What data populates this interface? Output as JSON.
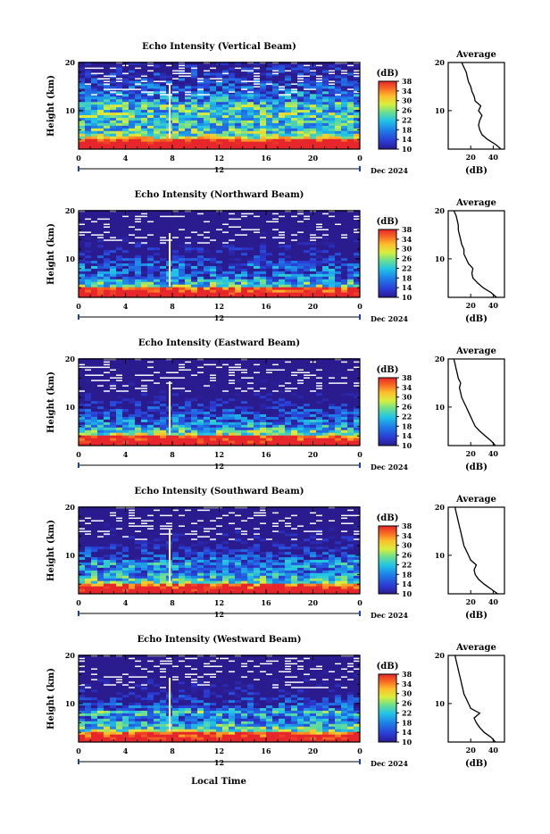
{
  "panels": [
    {
      "title": "Echo Intensity (Vertical Beam)",
      "avg_title": "Average",
      "avg_xticks": [
        "20",
        "40"
      ]
    },
    {
      "title": "Echo Intensity (Northward Beam)",
      "avg_title": "Average",
      "avg_xticks": [
        "20",
        "40"
      ]
    },
    {
      "title": "Echo Intensity (Eastward Beam)",
      "avg_title": "Average",
      "avg_xticks": [
        "20",
        "40"
      ]
    },
    {
      "title": "Echo Intensity (Southward Beam)",
      "avg_title": "Average",
      "avg_xticks": [
        "20",
        "40"
      ]
    },
    {
      "title": "Echo Intensity (Westward Beam)",
      "avg_title": "Average",
      "avg_xticks": [
        "20",
        "40"
      ]
    }
  ],
  "common": {
    "ylabel": "Height (km)",
    "yticks": [
      "20",
      "10"
    ],
    "xticks": [
      "0",
      "4",
      "8",
      "12",
      "16",
      "20",
      "0"
    ],
    "date_label": "Dec 2024",
    "date_tick": "12",
    "colorbar_label": "(dB)",
    "colorbar_ticks": [
      "38",
      "34",
      "30",
      "26",
      "22",
      "18",
      "14",
      "10"
    ],
    "avg_ylabel": "(dB)",
    "avg_yticks": [
      "20",
      "10"
    ],
    "xlabel": "Local Time"
  },
  "chart_data": [
    {
      "type": "heatmap",
      "title": "Echo Intensity (Vertical Beam)",
      "xlabel": "Local Time",
      "ylabel": "Height (km)",
      "xlim": [
        0,
        24
      ],
      "ylim": [
        2,
        20
      ],
      "colorbar": {
        "label": "(dB)",
        "range": [
          10,
          38
        ],
        "ticks": [
          10,
          14,
          18,
          22,
          26,
          30,
          34,
          38
        ]
      },
      "average_profile": {
        "height_km": [
          2,
          3,
          4,
          5,
          6,
          7,
          8,
          9,
          10,
          11,
          12,
          13,
          14,
          15,
          16,
          17,
          18,
          19,
          20
        ],
        "db": [
          47,
          42,
          35,
          30,
          28,
          27,
          28,
          30,
          27,
          29,
          24,
          23,
          21,
          20,
          18,
          17,
          16,
          14,
          12
        ]
      }
    },
    {
      "type": "heatmap",
      "title": "Echo Intensity (Northward Beam)",
      "xlabel": "Local Time",
      "ylabel": "Height (km)",
      "xlim": [
        0,
        24
      ],
      "ylim": [
        2,
        20
      ],
      "colorbar": {
        "label": "(dB)",
        "range": [
          10,
          38
        ],
        "ticks": [
          10,
          14,
          18,
          22,
          26,
          30,
          34,
          38
        ]
      },
      "average_profile": {
        "height_km": [
          2,
          3,
          4,
          5,
          6,
          7,
          8,
          9,
          10,
          11,
          12,
          13,
          14,
          15,
          16,
          17,
          18,
          19,
          20
        ],
        "db": [
          43,
          38,
          31,
          26,
          22,
          21,
          22,
          18,
          16,
          14,
          14,
          12,
          11,
          10,
          9,
          9,
          8,
          7,
          5
        ]
      }
    },
    {
      "type": "heatmap",
      "title": "Echo Intensity (Eastward Beam)",
      "xlabel": "Local Time",
      "ylabel": "Height (km)",
      "xlim": [
        0,
        24
      ],
      "ylim": [
        2,
        20
      ],
      "colorbar": {
        "label": "(dB)",
        "range": [
          10,
          38
        ],
        "ticks": [
          10,
          14,
          18,
          22,
          26,
          30,
          34,
          38
        ]
      },
      "average_profile": {
        "height_km": [
          2,
          3,
          4,
          5,
          6,
          7,
          8,
          9,
          10,
          11,
          12,
          13,
          14,
          15,
          16,
          17,
          18,
          19,
          20
        ],
        "db": [
          42,
          38,
          33,
          28,
          24,
          22,
          20,
          18,
          16,
          14,
          12,
          11,
          10,
          11,
          9,
          8,
          7,
          6,
          5
        ]
      }
    },
    {
      "type": "heatmap",
      "title": "Echo Intensity (Southward Beam)",
      "xlabel": "Local Time",
      "ylabel": "Height (km)",
      "xlim": [
        0,
        24
      ],
      "ylim": [
        2,
        20
      ],
      "colorbar": {
        "label": "(dB)",
        "range": [
          10,
          38
        ],
        "ticks": [
          10,
          14,
          18,
          22,
          26,
          30,
          34,
          38
        ]
      },
      "average_profile": {
        "height_km": [
          2,
          3,
          4,
          5,
          6,
          7,
          8,
          9,
          10,
          11,
          12,
          13,
          14,
          15,
          16,
          17,
          18,
          19,
          20
        ],
        "db": [
          44,
          38,
          32,
          27,
          24,
          23,
          25,
          20,
          18,
          16,
          14,
          13,
          12,
          11,
          10,
          9,
          8,
          7,
          6
        ]
      }
    },
    {
      "type": "heatmap",
      "title": "Echo Intensity (Westward Beam)",
      "xlabel": "Local Time",
      "ylabel": "Height (km)",
      "xlim": [
        0,
        24
      ],
      "ylim": [
        2,
        20
      ],
      "colorbar": {
        "label": "(dB)",
        "range": [
          10,
          38
        ],
        "ticks": [
          10,
          14,
          18,
          22,
          26,
          30,
          34,
          38
        ]
      },
      "average_profile": {
        "height_km": [
          2,
          3,
          4,
          5,
          6,
          7,
          8,
          9,
          10,
          11,
          12,
          13,
          14,
          15,
          16,
          17,
          18,
          19,
          20
        ],
        "db": [
          42,
          38,
          32,
          28,
          25,
          23,
          28,
          20,
          18,
          16,
          14,
          13,
          12,
          11,
          10,
          9,
          8,
          7,
          6
        ]
      }
    }
  ]
}
